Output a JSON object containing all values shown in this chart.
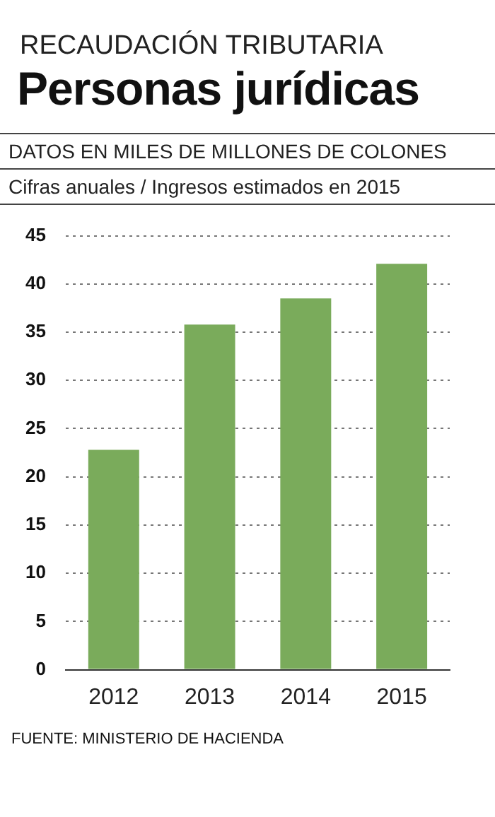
{
  "chart_data": {
    "type": "bar",
    "subtitle": "RECAUDACIÓN TRIBUTARIA",
    "title": "Personas jurídicas",
    "annotations": [
      "DATOS EN MILES DE MILLONES DE COLONES",
      "Cifras anuales / Ingresos estimados en 2015",
      "FUENTE: MINISTERIO DE HACIENDA"
    ],
    "categories": [
      "2012",
      "2013",
      "2014",
      "2015"
    ],
    "values": [
      22.8,
      35.8,
      38.5,
      42.1
    ],
    "color": "#7aab5b",
    "ylim": [
      0,
      45
    ],
    "yticks": [
      0,
      5,
      10,
      15,
      20,
      25,
      30,
      35,
      40,
      45
    ],
    "grid": "y",
    "legend": false
  }
}
